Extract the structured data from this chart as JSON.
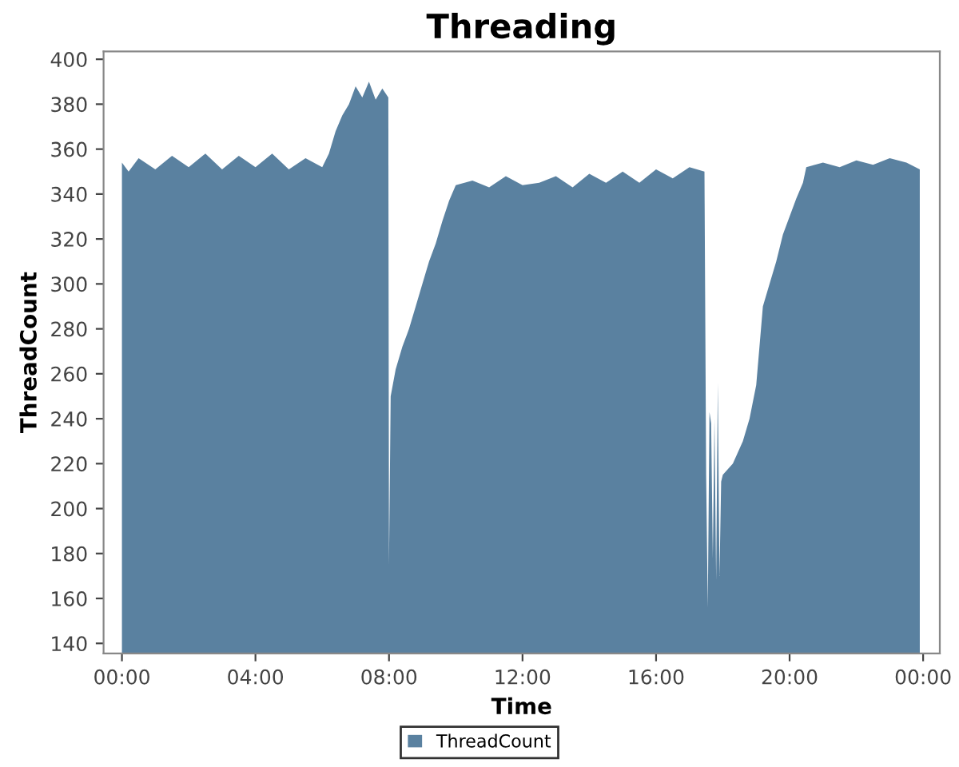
{
  "chart_data": {
    "type": "area",
    "title": "Threading",
    "xlabel": "Time",
    "ylabel": "ThreadCount",
    "xlim": [
      -0.55,
      24.5
    ],
    "ylim": [
      135.5,
      403.5
    ],
    "xticks": [
      {
        "value": 0,
        "label": "00:00"
      },
      {
        "value": 4,
        "label": "04:00"
      },
      {
        "value": 8,
        "label": "08:00"
      },
      {
        "value": 12,
        "label": "12:00"
      },
      {
        "value": 16,
        "label": "16:00"
      },
      {
        "value": 20,
        "label": "20:00"
      },
      {
        "value": 24,
        "label": "00:00"
      }
    ],
    "yticks": [
      140,
      160,
      180,
      200,
      220,
      240,
      260,
      280,
      300,
      320,
      340,
      360,
      380,
      400
    ],
    "grid": false,
    "legend": "bottom",
    "series": [
      {
        "name": "ThreadCount",
        "color": "#5a81a0",
        "x": [
          0,
          0.2,
          0.5,
          1,
          1.5,
          2,
          2.5,
          3,
          3.5,
          4,
          4.5,
          5,
          5.5,
          6,
          6.2,
          6.4,
          6.6,
          6.8,
          7,
          7.2,
          7.4,
          7.6,
          7.8,
          7.98,
          8,
          8.05,
          8.2,
          8.4,
          8.6,
          8.8,
          9,
          9.2,
          9.4,
          9.6,
          9.8,
          10,
          10.5,
          11,
          11.5,
          12,
          12.5,
          13,
          13.5,
          14,
          14.5,
          15,
          15.5,
          16,
          16.5,
          17,
          17.45,
          17.5,
          17.55,
          17.6,
          17.65,
          17.7,
          17.75,
          17.8,
          17.85,
          17.9,
          17.95,
          18,
          18.3,
          18.6,
          18.8,
          19,
          19.2,
          19.4,
          19.6,
          19.8,
          20,
          20.2,
          20.4,
          20.5,
          21,
          21.5,
          22,
          22.5,
          23,
          23.5,
          23.9
        ],
        "values": [
          354,
          350,
          356,
          351,
          357,
          352,
          358,
          351,
          357,
          352,
          358,
          351,
          356,
          352,
          358,
          368,
          375,
          380,
          388,
          383,
          390,
          382,
          387,
          383,
          175,
          250,
          262,
          272,
          280,
          290,
          300,
          310,
          318,
          328,
          337,
          344,
          346,
          343,
          348,
          344,
          345,
          348,
          343,
          349,
          345,
          350,
          345,
          351,
          347,
          352,
          350,
          215,
          156,
          243,
          238,
          178,
          240,
          168,
          256,
          170,
          212,
          215,
          220,
          230,
          240,
          255,
          290,
          300,
          310,
          322,
          330,
          338,
          345,
          352,
          354,
          352,
          355,
          353,
          356,
          354,
          351
        ]
      }
    ]
  }
}
